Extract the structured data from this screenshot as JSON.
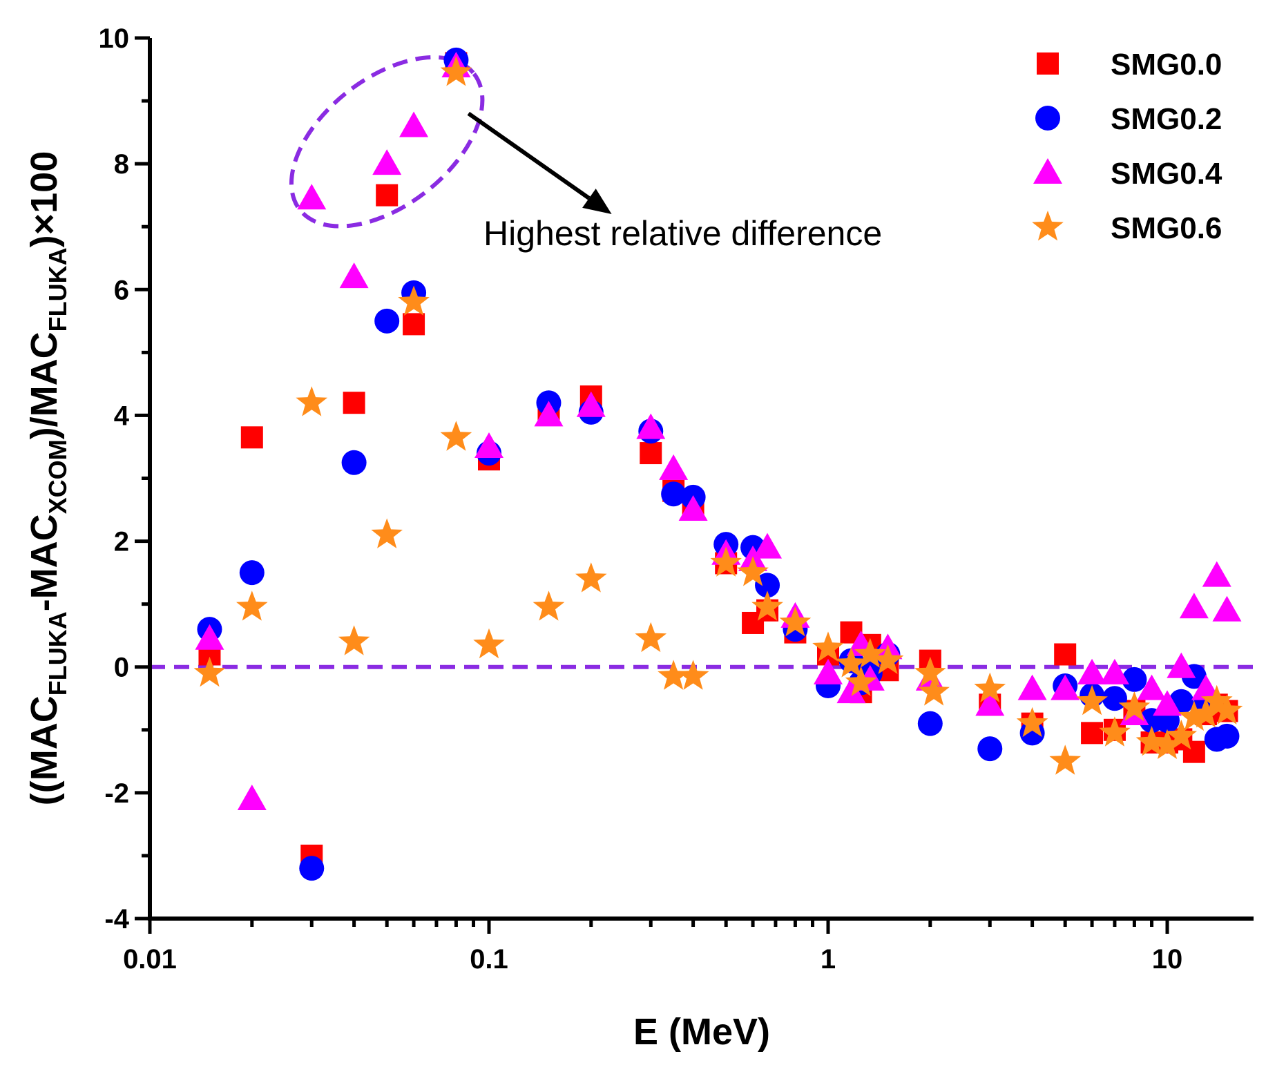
{
  "chart_data": {
    "type": "scatter",
    "title": "",
    "xlabel": "E (MeV)",
    "ylabel": {
      "p1": "((MAC",
      "s1": "FLUKA",
      "p2": "-MAC",
      "s2": "XCOM",
      "p3": ")/MAC",
      "s3": "FLUKA",
      "p4": ")×100"
    },
    "xscale": "log",
    "xlim": [
      0.01,
      16
    ],
    "ylim": [
      -4,
      10
    ],
    "xticks": [
      {
        "value": 0.01,
        "label": "0.01"
      },
      {
        "value": 0.1,
        "label": "0.1"
      },
      {
        "value": 1,
        "label": "1"
      },
      {
        "value": 10,
        "label": "10"
      }
    ],
    "yticks": [
      {
        "value": -4,
        "label": "-4"
      },
      {
        "value": -2,
        "label": "-2"
      },
      {
        "value": 0,
        "label": "0"
      },
      {
        "value": 2,
        "label": "2"
      },
      {
        "value": 4,
        "label": "4"
      },
      {
        "value": 6,
        "label": "6"
      },
      {
        "value": 8,
        "label": "8"
      },
      {
        "value": 10,
        "label": "10"
      }
    ],
    "reference_line": {
      "y": 0,
      "color": "#8a2be2"
    },
    "annotation": {
      "text": "Highest relative difference",
      "ellipse_center": [
        0.05,
        8.35
      ],
      "arrow_from": [
        0.087,
        8.8
      ],
      "arrow_to": [
        0.23,
        7.2
      ]
    },
    "legend_position": "top-right",
    "series": [
      {
        "name": "SMG0.0",
        "marker": "square",
        "color": "#ff0000",
        "points": [
          [
            0.015,
            0.2
          ],
          [
            0.02,
            3.65
          ],
          [
            0.03,
            -3.0
          ],
          [
            0.04,
            4.2
          ],
          [
            0.05,
            7.5
          ],
          [
            0.06,
            5.45
          ],
          [
            0.08,
            9.6
          ],
          [
            0.1,
            3.3
          ],
          [
            0.15,
            4.1
          ],
          [
            0.2,
            4.3
          ],
          [
            0.3,
            3.4
          ],
          [
            0.35,
            2.8
          ],
          [
            0.4,
            2.6
          ],
          [
            0.5,
            1.65
          ],
          [
            0.6,
            0.7
          ],
          [
            0.662,
            0.9
          ],
          [
            0.8,
            0.55
          ],
          [
            1.0,
            0.2
          ],
          [
            1.17,
            0.55
          ],
          [
            1.25,
            -0.4
          ],
          [
            1.33,
            0.35
          ],
          [
            1.5,
            -0.05
          ],
          [
            2.0,
            0.1
          ],
          [
            3.0,
            -0.6
          ],
          [
            4.0,
            -0.9
          ],
          [
            5.0,
            0.2
          ],
          [
            6.0,
            -1.05
          ],
          [
            7.0,
            -1.0
          ],
          [
            8.0,
            -0.7
          ],
          [
            9.0,
            -1.2
          ],
          [
            10.0,
            -1.2
          ],
          [
            11.0,
            -1.15
          ],
          [
            12.0,
            -1.35
          ],
          [
            13.0,
            -0.75
          ],
          [
            14.0,
            -0.6
          ],
          [
            15.0,
            -0.7
          ]
        ]
      },
      {
        "name": "SMG0.2",
        "marker": "circle",
        "color": "#0000ff",
        "points": [
          [
            0.015,
            0.6
          ],
          [
            0.02,
            1.5
          ],
          [
            0.03,
            -3.2
          ],
          [
            0.04,
            3.25
          ],
          [
            0.05,
            5.5
          ],
          [
            0.06,
            5.95
          ],
          [
            0.08,
            9.65
          ],
          [
            0.1,
            3.4
          ],
          [
            0.15,
            4.2
          ],
          [
            0.2,
            4.05
          ],
          [
            0.3,
            3.75
          ],
          [
            0.35,
            2.75
          ],
          [
            0.4,
            2.7
          ],
          [
            0.5,
            1.95
          ],
          [
            0.6,
            1.9
          ],
          [
            0.662,
            1.3
          ],
          [
            0.8,
            0.6
          ],
          [
            1.0,
            -0.3
          ],
          [
            1.17,
            0.1
          ],
          [
            1.25,
            -0.25
          ],
          [
            1.33,
            -0.1
          ],
          [
            1.5,
            0.2
          ],
          [
            2.0,
            -0.9
          ],
          [
            3.0,
            -1.3
          ],
          [
            4.0,
            -1.05
          ],
          [
            5.0,
            -0.3
          ],
          [
            6.0,
            -0.45
          ],
          [
            7.0,
            -0.5
          ],
          [
            8.0,
            -0.2
          ],
          [
            9.0,
            -0.85
          ],
          [
            10.0,
            -0.85
          ],
          [
            11.0,
            -0.55
          ],
          [
            12.0,
            -0.15
          ],
          [
            13.0,
            -0.6
          ],
          [
            14.0,
            -1.15
          ],
          [
            15.0,
            -1.1
          ]
        ]
      },
      {
        "name": "SMG0.4",
        "marker": "triangle",
        "color": "#ff00ff",
        "points": [
          [
            0.015,
            0.45
          ],
          [
            0.02,
            -2.1
          ],
          [
            0.03,
            7.45
          ],
          [
            0.04,
            6.2
          ],
          [
            0.05,
            8.0
          ],
          [
            0.06,
            8.6
          ],
          [
            0.08,
            9.55
          ],
          [
            0.1,
            3.5
          ],
          [
            0.15,
            4.0
          ],
          [
            0.2,
            4.15
          ],
          [
            0.3,
            3.8
          ],
          [
            0.35,
            3.15
          ],
          [
            0.4,
            2.5
          ],
          [
            0.5,
            1.8
          ],
          [
            0.6,
            1.7
          ],
          [
            0.662,
            1.9
          ],
          [
            0.8,
            0.8
          ],
          [
            1.0,
            -0.1
          ],
          [
            1.17,
            -0.4
          ],
          [
            1.25,
            0.35
          ],
          [
            1.33,
            -0.2
          ],
          [
            1.5,
            0.3
          ],
          [
            2.0,
            -0.2
          ],
          [
            3.0,
            -0.6
          ],
          [
            4.0,
            -0.35
          ],
          [
            5.0,
            -0.35
          ],
          [
            6.0,
            -0.1
          ],
          [
            7.0,
            -0.1
          ],
          [
            8.0,
            -0.75
          ],
          [
            9.0,
            -0.35
          ],
          [
            10.0,
            -0.6
          ],
          [
            11.0,
            0.0
          ],
          [
            12.0,
            0.95
          ],
          [
            13.0,
            -0.35
          ],
          [
            14.0,
            1.45
          ],
          [
            15.0,
            0.9
          ]
        ]
      },
      {
        "name": "SMG0.6",
        "marker": "star",
        "color": "#ff8c1a",
        "points": [
          [
            0.015,
            -0.1
          ],
          [
            0.02,
            0.95
          ],
          [
            0.03,
            4.2
          ],
          [
            0.04,
            0.4
          ],
          [
            0.05,
            2.1
          ],
          [
            0.06,
            5.8
          ],
          [
            0.08,
            9.45
          ],
          [
            0.08,
            3.65
          ],
          [
            0.1,
            0.35
          ],
          [
            0.15,
            0.95
          ],
          [
            0.2,
            1.4
          ],
          [
            0.3,
            0.45
          ],
          [
            0.35,
            -0.15
          ],
          [
            0.4,
            -0.15
          ],
          [
            0.5,
            1.65
          ],
          [
            0.6,
            1.5
          ],
          [
            0.662,
            0.95
          ],
          [
            0.8,
            0.7
          ],
          [
            1.0,
            0.3
          ],
          [
            1.17,
            0.05
          ],
          [
            1.25,
            -0.25
          ],
          [
            1.33,
            0.2
          ],
          [
            1.5,
            0.1
          ],
          [
            2.0,
            -0.1
          ],
          [
            2.05,
            -0.4
          ],
          [
            3.0,
            -0.35
          ],
          [
            4.0,
            -0.9
          ],
          [
            5.0,
            -1.5
          ],
          [
            6.0,
            -0.55
          ],
          [
            7.0,
            -1.05
          ],
          [
            8.0,
            -0.65
          ],
          [
            9.0,
            -1.2
          ],
          [
            10.0,
            -1.25
          ],
          [
            11.0,
            -1.1
          ],
          [
            12.0,
            -0.8
          ],
          [
            13.0,
            -0.75
          ],
          [
            14.0,
            -0.55
          ],
          [
            15.0,
            -0.7
          ]
        ]
      }
    ]
  }
}
